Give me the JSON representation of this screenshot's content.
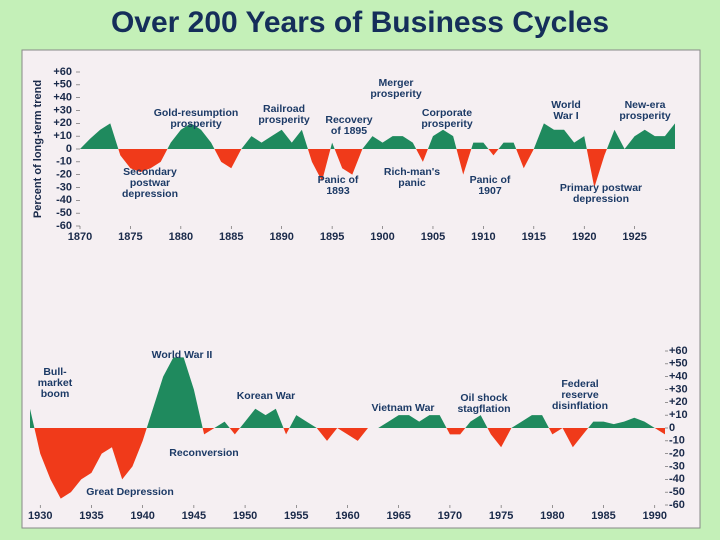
{
  "title": "Over 200 Years of Business Cycles",
  "chart_data": [
    {
      "type": "area",
      "y_axis_label": "Percent of long-term trend",
      "colors": {
        "positive": "#1f8a5e",
        "negative": "#f03a1a"
      },
      "x": [
        1870,
        1871,
        1872,
        1873,
        1874,
        1875,
        1876,
        1877,
        1878,
        1879,
        1880,
        1881,
        1882,
        1883,
        1884,
        1885,
        1886,
        1887,
        1888,
        1889,
        1890,
        1891,
        1892,
        1893,
        1894,
        1895,
        1896,
        1897,
        1898,
        1899,
        1900,
        1901,
        1902,
        1903,
        1904,
        1905,
        1906,
        1907,
        1908,
        1909,
        1910,
        1911,
        1912,
        1913,
        1914,
        1915,
        1916,
        1917,
        1918,
        1919,
        1920,
        1921,
        1922,
        1923,
        1924,
        1925,
        1926,
        1927,
        1928,
        1929
      ],
      "values": [
        0,
        8,
        15,
        20,
        -5,
        -15,
        -18,
        -15,
        -10,
        5,
        15,
        20,
        15,
        5,
        -10,
        -15,
        0,
        10,
        5,
        10,
        15,
        5,
        15,
        -10,
        -25,
        5,
        -15,
        -20,
        0,
        10,
        5,
        10,
        10,
        5,
        -10,
        10,
        15,
        10,
        -20,
        5,
        5,
        -5,
        5,
        5,
        -15,
        0,
        20,
        15,
        15,
        5,
        10,
        -30,
        -5,
        15,
        0,
        10,
        15,
        10,
        10,
        20
      ],
      "xlim": [
        1870,
        1929
      ],
      "xticks": [
        1870,
        1875,
        1880,
        1885,
        1890,
        1895,
        1900,
        1905,
        1910,
        1915,
        1920,
        1925
      ],
      "ylim": [
        -60,
        60
      ],
      "yticks": [
        {
          "value": 60,
          "label": "+60"
        },
        {
          "value": 50,
          "label": "+50"
        },
        {
          "value": 40,
          "label": "+40"
        },
        {
          "value": 30,
          "label": "+30"
        },
        {
          "value": 20,
          "label": "+20"
        },
        {
          "value": 10,
          "label": "+10"
        },
        0,
        -10,
        -20,
        -30,
        -40,
        -50,
        -60
      ],
      "annotations": [
        [
          "Gold-resumption",
          "prosperity"
        ],
        [
          "Railroad",
          "prosperity"
        ],
        [
          "Recovery",
          "of 1895"
        ],
        [
          "Merger",
          "prosperity"
        ],
        [
          "Corporate",
          "prosperity"
        ],
        [
          "World",
          "War I"
        ],
        [
          "New-era",
          "prosperity"
        ],
        [
          "Secondary",
          "postwar",
          "depression"
        ],
        [
          "Panic of",
          "1893"
        ],
        [
          "Rich-man's",
          "panic"
        ],
        [
          "Panic of",
          "1907"
        ],
        [
          "Primary postwar",
          "depression"
        ]
      ]
    },
    {
      "type": "area",
      "colors": {
        "positive": "#1f8a5e",
        "negative": "#f03a1a"
      },
      "x": [
        1929,
        1930,
        1931,
        1932,
        1933,
        1934,
        1935,
        1936,
        1937,
        1938,
        1939,
        1940,
        1941,
        1942,
        1943,
        1944,
        1945,
        1946,
        1947,
        1948,
        1949,
        1950,
        1951,
        1952,
        1953,
        1954,
        1955,
        1956,
        1957,
        1958,
        1959,
        1960,
        1961,
        1962,
        1963,
        1964,
        1965,
        1966,
        1967,
        1968,
        1969,
        1970,
        1971,
        1972,
        1973,
        1974,
        1975,
        1976,
        1977,
        1978,
        1979,
        1980,
        1981,
        1982,
        1983,
        1984,
        1985,
        1986,
        1987,
        1988,
        1989,
        1990,
        1991
      ],
      "values": [
        15,
        -20,
        -40,
        -55,
        -50,
        -40,
        -35,
        -20,
        -15,
        -40,
        -30,
        -10,
        15,
        40,
        55,
        55,
        30,
        -5,
        0,
        5,
        -5,
        5,
        15,
        10,
        15,
        -5,
        10,
        5,
        0,
        -10,
        0,
        -5,
        -10,
        0,
        0,
        5,
        10,
        10,
        5,
        10,
        10,
        -5,
        -5,
        5,
        10,
        -5,
        -15,
        0,
        5,
        10,
        10,
        -5,
        0,
        -15,
        -5,
        5,
        5,
        3,
        5,
        8,
        5,
        0,
        -5
      ],
      "xlim": [
        1929,
        1991
      ],
      "xticks": [
        1930,
        1935,
        1940,
        1945,
        1950,
        1955,
        1960,
        1965,
        1970,
        1975,
        1980,
        1985,
        1990
      ],
      "ylim": [
        -60,
        60
      ],
      "yticks": [
        {
          "value": 60,
          "label": "+60"
        },
        {
          "value": 50,
          "label": "+50"
        },
        {
          "value": 40,
          "label": "+40"
        },
        {
          "value": 30,
          "label": "+30"
        },
        {
          "value": 20,
          "label": "+20"
        },
        {
          "value": 10,
          "label": "+10"
        },
        0,
        -10,
        -20,
        -30,
        -40,
        -50,
        -60
      ],
      "annotations": [
        [
          "Bull-",
          "market",
          "boom"
        ],
        [
          "World War II"
        ],
        [
          "Korean War"
        ],
        [
          "Vietnam War"
        ],
        [
          "Oil shock",
          "stagflation"
        ],
        [
          "Federal",
          "reserve",
          "disinflation"
        ],
        [
          "Reconversion"
        ],
        [
          "Great Depression"
        ]
      ]
    }
  ]
}
